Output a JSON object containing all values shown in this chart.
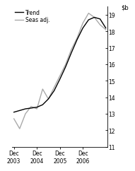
{
  "title": "",
  "ylabel": "$b",
  "ylim": [
    11,
    19.5
  ],
  "yticks": [
    11,
    12,
    13,
    14,
    15,
    16,
    17,
    18,
    19
  ],
  "xlabel": "",
  "background_color": "#ffffff",
  "trend_color": "#000000",
  "seas_color": "#aaaaaa",
  "trend_x": [
    0,
    1,
    2,
    3,
    4,
    5,
    6,
    7,
    8,
    9,
    10,
    11,
    12,
    13,
    14,
    15,
    16
  ],
  "trend_y": [
    13.1,
    13.2,
    13.3,
    13.35,
    13.4,
    13.55,
    13.9,
    14.4,
    15.1,
    15.85,
    16.7,
    17.5,
    18.2,
    18.7,
    18.85,
    18.75,
    18.2
  ],
  "seas_x": [
    0,
    1,
    2,
    3,
    4,
    5,
    6,
    7,
    8,
    9,
    10,
    11,
    12,
    13,
    14,
    15,
    16
  ],
  "seas_y": [
    12.7,
    12.1,
    13.0,
    13.45,
    13.3,
    14.5,
    13.9,
    14.6,
    15.3,
    16.0,
    16.9,
    17.6,
    18.5,
    19.1,
    18.85,
    18.4,
    18.1
  ],
  "xtick_positions": [
    0,
    4,
    8,
    12,
    16
  ],
  "xtick_labels": [
    "Dec\n2003",
    "Dec\n2004",
    "Dec\n2005",
    "Dec\n2006",
    ""
  ],
  "legend_labels": [
    "Trend",
    "Seas adj."
  ],
  "legend_colors": [
    "#000000",
    "#aaaaaa"
  ],
  "linewidth_trend": 1.0,
  "linewidth_seas": 1.0
}
